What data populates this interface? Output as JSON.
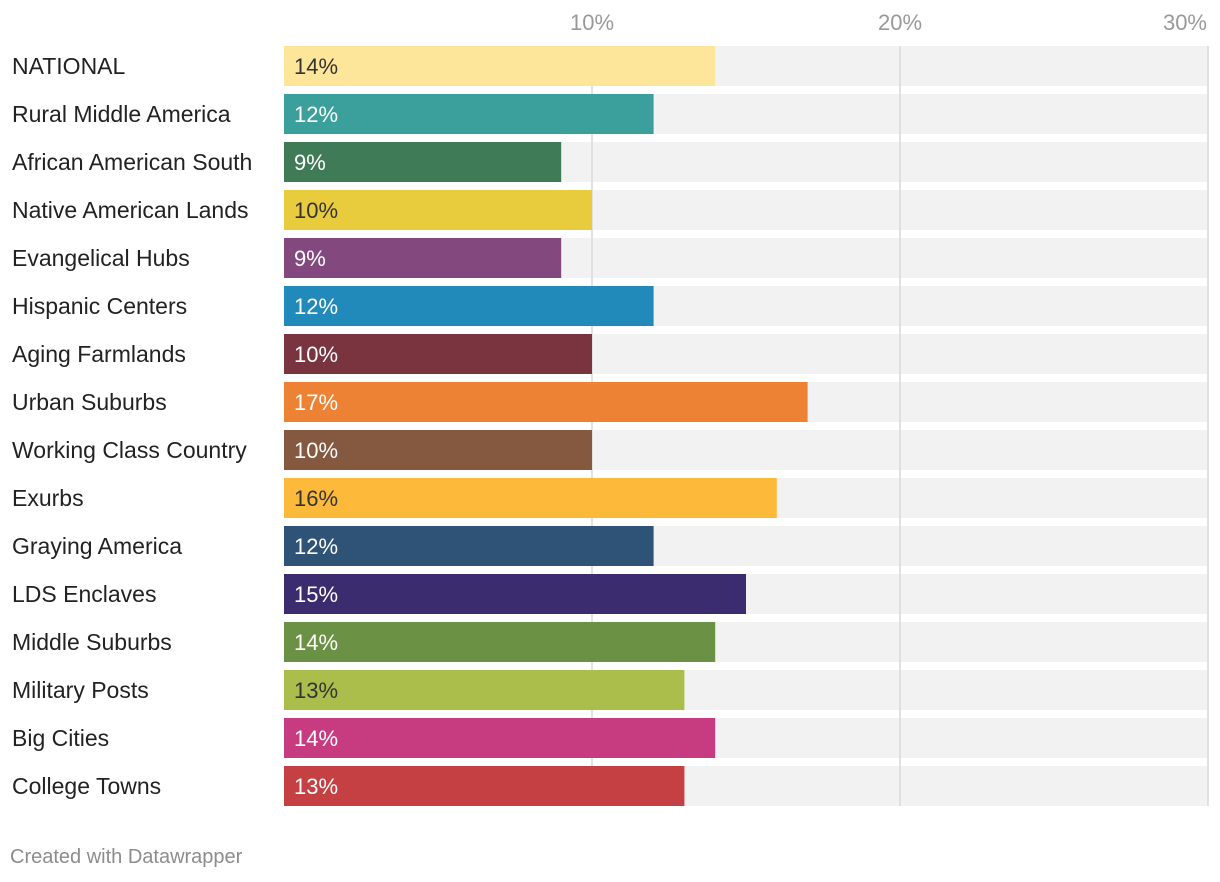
{
  "chart_data": {
    "type": "bar",
    "orientation": "horizontal",
    "categories": [
      "NATIONAL",
      "Rural Middle America",
      "African American South",
      "Native American Lands",
      "Evangelical Hubs",
      "Hispanic Centers",
      "Aging Farmlands",
      "Urban Suburbs",
      "Working Class Country",
      "Exurbs",
      "Graying America",
      "LDS Enclaves",
      "Middle Suburbs",
      "Military Posts",
      "Big Cities",
      "College Towns"
    ],
    "values": [
      14,
      12,
      9,
      10,
      9,
      12,
      10,
      17,
      10,
      16,
      12,
      15,
      14,
      13,
      14,
      13
    ],
    "value_labels": [
      "14%",
      "12%",
      "9%",
      "10%",
      "9%",
      "12%",
      "10%",
      "17%",
      "10%",
      "16%",
      "12%",
      "15%",
      "14%",
      "13%",
      "14%",
      "13%"
    ],
    "colors": [
      "#fde59a",
      "#3b9f9c",
      "#407b58",
      "#e8cc3e",
      "#83497f",
      "#2289bb",
      "#793440",
      "#ee8234",
      "#855840",
      "#fdb939",
      "#2e5377",
      "#3b2c6f",
      "#6a9144",
      "#abbd4b",
      "#c73c81",
      "#c44043"
    ],
    "label_text_colors": [
      "#333333",
      "#ffffff",
      "#ffffff",
      "#333333",
      "#ffffff",
      "#ffffff",
      "#ffffff",
      "#ffffff",
      "#ffffff",
      "#333333",
      "#ffffff",
      "#ffffff",
      "#ffffff",
      "#333333",
      "#ffffff",
      "#ffffff"
    ],
    "xlim": [
      0,
      30
    ],
    "ticks": [
      10,
      20,
      30
    ],
    "tick_labels": [
      "10%",
      "20%",
      "30%"
    ],
    "grid": true,
    "background_bar_color": "#f2f2f2",
    "grid_color": "#d9d9d9",
    "title": "",
    "xlabel": "",
    "ylabel": ""
  },
  "footer": {
    "credit": "Created with Datawrapper"
  }
}
